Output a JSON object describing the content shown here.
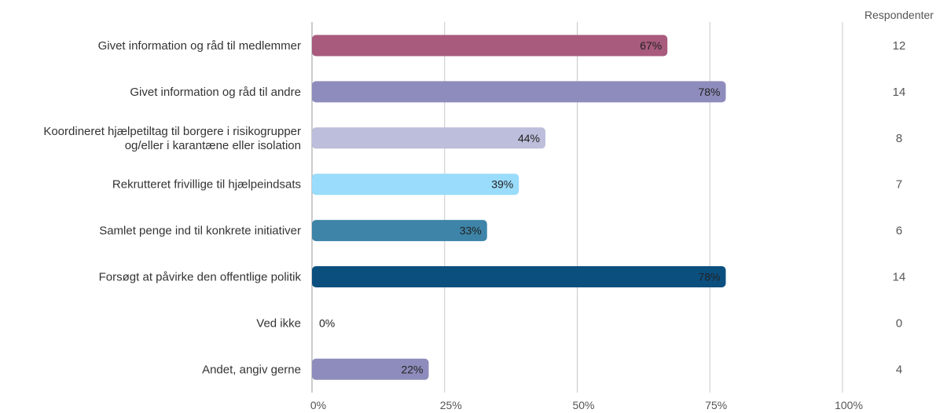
{
  "chart_data": {
    "type": "bar",
    "orientation": "horizontal",
    "categories": [
      [
        "Givet information og råd til medlemmer"
      ],
      [
        "Givet information og råd til andre"
      ],
      [
        "Koordineret hjælpetiltag til borgere i risikogrupper",
        "og/eller i karantæne eller isolation"
      ],
      [
        "Rekrutteret frivillige til hjælpeindsats"
      ],
      [
        "Samlet penge ind til konkrete initiativer"
      ],
      [
        "Forsøgt at påvirke den offentlige politik"
      ],
      [
        "Ved ikke"
      ],
      [
        "Andet, angiv gerne"
      ]
    ],
    "values": [
      67,
      78,
      44,
      39,
      33,
      78,
      0,
      22
    ],
    "data_labels": [
      "67%",
      "78%",
      "44%",
      "39%",
      "33%",
      "78%",
      "0%",
      "22%"
    ],
    "colors": [
      "#a85b7d",
      "#8e8cbc",
      "#bdbedb",
      "#9adcfb",
      "#3d84a8",
      "#0b4f7f",
      "#cccccc",
      "#8e8cbc"
    ],
    "xlim": [
      0,
      100
    ],
    "x_ticks": [
      "0%",
      "25%",
      "50%",
      "75%",
      "100%"
    ],
    "grid": true,
    "respondents_header": "Respondenter",
    "respondents": [
      "12",
      "14",
      "8",
      "7",
      "6",
      "14",
      "0",
      "4"
    ]
  }
}
